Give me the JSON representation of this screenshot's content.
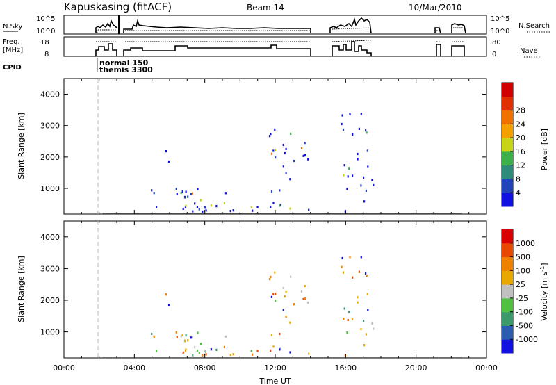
{
  "header": {
    "station": "Kapuskasing (fitACF)",
    "beam": "Beam 14",
    "date": "10/Mar/2010"
  },
  "summary_panels": {
    "nsky": {
      "left_label": "N.Sky",
      "right_label": "N.Search",
      "ticks_left": [
        "10^5",
        "10^0"
      ],
      "ticks_right": [
        "10^5",
        "10^0"
      ]
    },
    "freq": {
      "left_label_1": "Freq.",
      "left_label_2": "[MHz]",
      "right_label": "Nave",
      "ticks_left": [
        "18",
        "8"
      ],
      "ticks_right": [
        "80",
        "0"
      ]
    },
    "cpid": {
      "label": "CPID",
      "entries": [
        "normal 150",
        "themis 3300"
      ]
    }
  },
  "chart_data": [
    {
      "type": "heatmap",
      "panel": "power",
      "ylabel": "Slant Range [km]",
      "xlabel": "",
      "ylim": [
        180,
        4500
      ],
      "y_ticks": [
        "1000",
        "2000",
        "3000",
        "4000"
      ],
      "x_tick_labels": [],
      "colorbar": {
        "label": "Power [dB]",
        "ticks": [
          "4",
          "8",
          "12",
          "16",
          "20",
          "24",
          "28"
        ],
        "colors": [
          "#1010e0",
          "#2244bb",
          "#2e8a7a",
          "#3cb04a",
          "#c8d418",
          "#f4a000",
          "#f07000",
          "#e03000",
          "#d00000"
        ]
      }
    },
    {
      "type": "heatmap",
      "panel": "velocity",
      "ylabel": "Slant Range [km]",
      "xlabel": "Time UT",
      "ylim": [
        180,
        4500
      ],
      "y_ticks": [
        "1000",
        "2000",
        "3000",
        "4000"
      ],
      "x_tick_labels": [
        "00:00",
        "04:00",
        "08:00",
        "12:00",
        "16:00",
        "20:00",
        "00:00"
      ],
      "colorbar": {
        "label": "Velocity",
        "unit": "[m s",
        "unit_sup": "-1",
        "unit_close": "]",
        "ticks": [
          "1000",
          "500",
          "100",
          "25",
          "-25",
          "-100",
          "-500",
          "-1000"
        ],
        "colors": [
          "#1010e0",
          "#2c5cb0",
          "#3c9a6a",
          "#50c040",
          "#c0c0c0",
          "#e8a800",
          "#f08000",
          "#e84800",
          "#d80000"
        ]
      }
    }
  ]
}
